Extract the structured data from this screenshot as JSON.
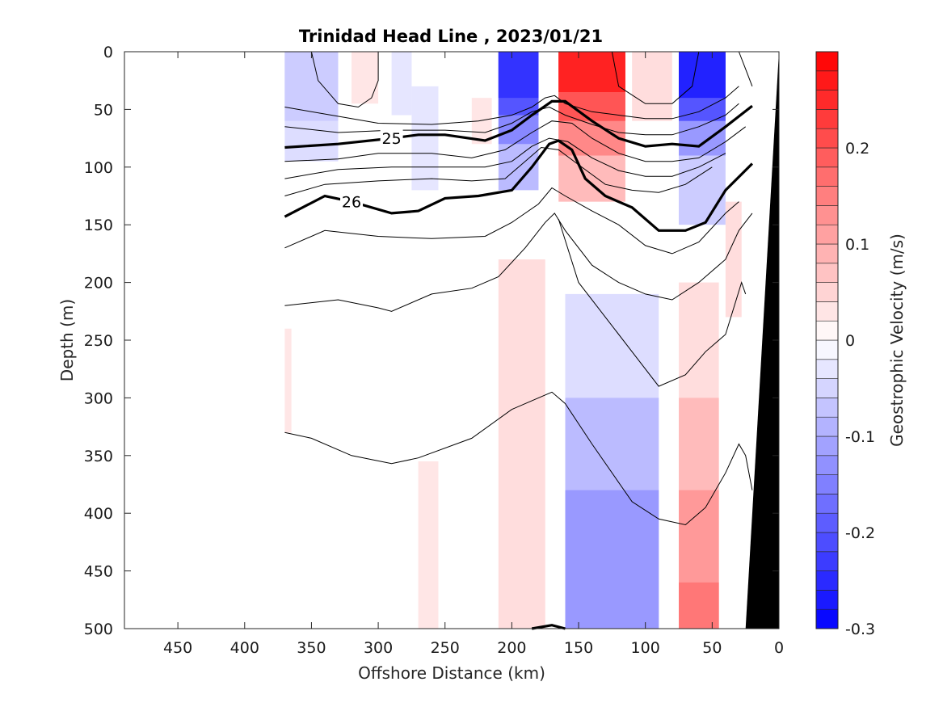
{
  "chart_data": {
    "type": "heatmap",
    "title": "Trinidad Head Line , 2023/01/21",
    "xlabel": "Offshore Distance (km)",
    "ylabel": "Depth (m)",
    "xlim": [
      490,
      0
    ],
    "ylim": [
      500,
      0
    ],
    "x_ticks": [
      "450",
      "400",
      "350",
      "300",
      "250",
      "200",
      "150",
      "100",
      "50",
      "0"
    ],
    "y_ticks": [
      "0",
      "50",
      "100",
      "150",
      "200",
      "250",
      "300",
      "350",
      "400",
      "450",
      "500"
    ],
    "colorbar": {
      "label": "Geostrophic Velocity (m/s)",
      "range": [
        -0.3,
        0.3
      ],
      "step": 0.02,
      "tick_labels": [
        "0.2",
        "0.1",
        "0",
        "-0.1",
        "-0.2",
        "-0.3"
      ],
      "tick_values": [
        0.2,
        0.1,
        0,
        -0.1,
        -0.2,
        -0.3
      ],
      "colormap": "blue-white-red"
    },
    "velocity_columns": [
      {
        "x_range": [
          370,
          330
        ],
        "layers": [
          {
            "depth": [
              0,
              95
            ],
            "value": -0.04
          },
          {
            "depth": [
              0,
              60
            ],
            "value": -0.06
          }
        ]
      },
      {
        "x_range": [
          320,
          300
        ],
        "layers": [
          {
            "depth": [
              0,
              45
            ],
            "value": 0.03
          }
        ]
      },
      {
        "x_range": [
          290,
          275
        ],
        "layers": [
          {
            "depth": [
              0,
              55
            ],
            "value": -0.03
          }
        ]
      },
      {
        "x_range": [
          275,
          255
        ],
        "layers": [
          {
            "depth": [
              30,
              120
            ],
            "value": -0.03
          }
        ]
      },
      {
        "x_range": [
          270,
          255
        ],
        "layers": [
          {
            "depth": [
              355,
              500
            ],
            "value": 0.03
          }
        ]
      },
      {
        "x_range": [
          230,
          215
        ],
        "layers": [
          {
            "depth": [
              40,
              80
            ],
            "value": 0.03
          }
        ]
      },
      {
        "x_range": [
          210,
          180
        ],
        "layers": [
          {
            "depth": [
              0,
              120
            ],
            "value": -0.08
          },
          {
            "depth": [
              0,
              80
            ],
            "value": -0.14
          },
          {
            "depth": [
              0,
              55
            ],
            "value": -0.2
          },
          {
            "depth": [
              0,
              40
            ],
            "value": -0.24
          }
        ]
      },
      {
        "x_range": [
          210,
          175
        ],
        "layers": [
          {
            "depth": [
              180,
              500
            ],
            "value": 0.04
          }
        ]
      },
      {
        "x_range": [
          165,
          115
        ],
        "layers": [
          {
            "depth": [
              0,
              130
            ],
            "value": 0.08
          },
          {
            "depth": [
              0,
              90
            ],
            "value": 0.14
          },
          {
            "depth": [
              0,
              60
            ],
            "value": 0.2
          },
          {
            "depth": [
              0,
              35
            ],
            "value": 0.26
          }
        ]
      },
      {
        "x_range": [
          160,
          90
        ],
        "layers": [
          {
            "depth": [
              210,
              500
            ],
            "value": -0.04
          },
          {
            "depth": [
              300,
              500
            ],
            "value": -0.08
          },
          {
            "depth": [
              380,
              500
            ],
            "value": -0.12
          }
        ]
      },
      {
        "x_range": [
          110,
          80
        ],
        "layers": [
          {
            "depth": [
              0,
              60
            ],
            "value": 0.04
          }
        ]
      },
      {
        "x_range": [
          75,
          40
        ],
        "layers": [
          {
            "depth": [
              0,
              150
            ],
            "value": -0.06
          },
          {
            "depth": [
              0,
              90
            ],
            "value": -0.12
          },
          {
            "depth": [
              0,
              60
            ],
            "value": -0.2
          },
          {
            "depth": [
              0,
              40
            ],
            "value": -0.26
          }
        ]
      },
      {
        "x_range": [
          75,
          45
        ],
        "layers": [
          {
            "depth": [
              200,
              500
            ],
            "value": 0.04
          },
          {
            "depth": [
              300,
              500
            ],
            "value": 0.08
          },
          {
            "depth": [
              380,
              500
            ],
            "value": 0.12
          },
          {
            "depth": [
              460,
              500
            ],
            "value": 0.16
          }
        ]
      },
      {
        "x_range": [
          40,
          28
        ],
        "layers": [
          {
            "depth": [
              130,
              230
            ],
            "value": 0.04
          }
        ]
      },
      {
        "x_range": [
          370,
          365
        ],
        "layers": [
          {
            "depth": [
              240,
              330
            ],
            "value": 0.03
          }
        ]
      }
    ],
    "density_contours": [
      {
        "label": "",
        "bold": false,
        "points": [
          [
            370,
            48
          ],
          [
            335,
            55
          ],
          [
            300,
            62
          ],
          [
            260,
            63
          ],
          [
            225,
            60
          ],
          [
            200,
            55
          ],
          [
            185,
            48
          ],
          [
            175,
            40
          ],
          [
            168,
            38
          ],
          [
            160,
            45
          ],
          [
            140,
            52
          ],
          [
            120,
            55
          ],
          [
            100,
            58
          ],
          [
            80,
            58
          ],
          [
            60,
            52
          ],
          [
            40,
            40
          ],
          [
            30,
            30
          ]
        ]
      },
      {
        "label": "",
        "bold": false,
        "points": [
          [
            370,
            65
          ],
          [
            330,
            70
          ],
          [
            290,
            68
          ],
          [
            250,
            68
          ],
          [
            220,
            70
          ],
          [
            200,
            62
          ],
          [
            185,
            52
          ],
          [
            172,
            48
          ],
          [
            160,
            55
          ],
          [
            140,
            63
          ],
          [
            120,
            70
          ],
          [
            100,
            72
          ],
          [
            80,
            72
          ],
          [
            60,
            65
          ],
          [
            40,
            55
          ],
          [
            30,
            45
          ]
        ]
      },
      {
        "label": "25",
        "bold": true,
        "points": [
          [
            370,
            83
          ],
          [
            330,
            80
          ],
          [
            290,
            75
          ],
          [
            270,
            72
          ],
          [
            250,
            72
          ],
          [
            220,
            77
          ],
          [
            200,
            68
          ],
          [
            185,
            55
          ],
          [
            170,
            43
          ],
          [
            160,
            43
          ],
          [
            140,
            60
          ],
          [
            120,
            75
          ],
          [
            100,
            82
          ],
          [
            80,
            80
          ],
          [
            60,
            82
          ],
          [
            40,
            65
          ],
          [
            20,
            47
          ]
        ]
      },
      {
        "label": "",
        "bold": false,
        "points": [
          [
            370,
            95
          ],
          [
            330,
            93
          ],
          [
            300,
            88
          ],
          [
            260,
            88
          ],
          [
            230,
            92
          ],
          [
            205,
            85
          ],
          [
            185,
            70
          ],
          [
            170,
            60
          ],
          [
            155,
            62
          ],
          [
            140,
            75
          ],
          [
            120,
            88
          ],
          [
            100,
            95
          ],
          [
            80,
            95
          ],
          [
            60,
            92
          ],
          [
            40,
            78
          ],
          [
            25,
            65
          ]
        ]
      },
      {
        "label": "",
        "bold": false,
        "points": [
          [
            370,
            110
          ],
          [
            330,
            102
          ],
          [
            290,
            100
          ],
          [
            250,
            100
          ],
          [
            220,
            100
          ],
          [
            200,
            95
          ],
          [
            185,
            82
          ],
          [
            172,
            75
          ],
          [
            158,
            78
          ],
          [
            140,
            92
          ],
          [
            120,
            103
          ],
          [
            100,
            108
          ],
          [
            80,
            108
          ],
          [
            60,
            100
          ],
          [
            40,
            88
          ]
        ]
      },
      {
        "label": "",
        "bold": false,
        "points": [
          [
            370,
            125
          ],
          [
            340,
            115
          ],
          [
            300,
            112
          ],
          [
            260,
            110
          ],
          [
            230,
            112
          ],
          [
            205,
            110
          ],
          [
            190,
            95
          ],
          [
            178,
            83
          ],
          [
            165,
            85
          ],
          [
            150,
            98
          ],
          [
            130,
            115
          ],
          [
            110,
            120
          ],
          [
            90,
            122
          ],
          [
            70,
            115
          ],
          [
            50,
            100
          ]
        ]
      },
      {
        "label": "26",
        "bold": true,
        "points": [
          [
            370,
            143
          ],
          [
            340,
            125
          ],
          [
            320,
            130
          ],
          [
            290,
            140
          ],
          [
            270,
            138
          ],
          [
            250,
            127
          ],
          [
            225,
            125
          ],
          [
            200,
            120
          ],
          [
            185,
            100
          ],
          [
            172,
            80
          ],
          [
            165,
            77
          ],
          [
            155,
            85
          ],
          [
            145,
            110
          ],
          [
            130,
            125
          ],
          [
            110,
            135
          ],
          [
            90,
            155
          ],
          [
            70,
            155
          ],
          [
            55,
            148
          ],
          [
            40,
            120
          ],
          [
            20,
            97
          ]
        ]
      },
      {
        "label": "",
        "bold": false,
        "points": [
          [
            370,
            170
          ],
          [
            340,
            155
          ],
          [
            300,
            160
          ],
          [
            260,
            162
          ],
          [
            220,
            160
          ],
          [
            200,
            148
          ],
          [
            180,
            132
          ],
          [
            170,
            118
          ],
          [
            160,
            125
          ],
          [
            140,
            138
          ],
          [
            120,
            150
          ],
          [
            100,
            168
          ],
          [
            80,
            175
          ],
          [
            60,
            165
          ],
          [
            40,
            140
          ],
          [
            30,
            130
          ]
        ]
      },
      {
        "label": "",
        "bold": false,
        "points": [
          [
            370,
            220
          ],
          [
            330,
            215
          ],
          [
            300,
            222
          ],
          [
            290,
            225
          ],
          [
            260,
            210
          ],
          [
            230,
            205
          ],
          [
            210,
            195
          ],
          [
            190,
            170
          ],
          [
            175,
            148
          ],
          [
            168,
            140
          ],
          [
            160,
            155
          ],
          [
            140,
            185
          ],
          [
            120,
            200
          ],
          [
            100,
            210
          ],
          [
            80,
            215
          ],
          [
            60,
            200
          ],
          [
            40,
            180
          ],
          [
            30,
            155
          ],
          [
            20,
            140
          ]
        ]
      },
      {
        "label": "",
        "bold": false,
        "points": [
          [
            370,
            330
          ],
          [
            350,
            335
          ],
          [
            320,
            350
          ],
          [
            290,
            357
          ],
          [
            270,
            352
          ],
          [
            230,
            335
          ],
          [
            200,
            310
          ],
          [
            180,
            300
          ],
          [
            170,
            295
          ],
          [
            160,
            305
          ],
          [
            140,
            340
          ],
          [
            110,
            390
          ],
          [
            90,
            405
          ],
          [
            70,
            410
          ],
          [
            55,
            395
          ],
          [
            40,
            365
          ],
          [
            30,
            340
          ],
          [
            25,
            350
          ],
          [
            20,
            380
          ]
        ]
      },
      {
        "label": "",
        "bold": false,
        "points": [
          [
            165,
            145
          ],
          [
            150,
            200
          ],
          [
            130,
            230
          ],
          [
            110,
            260
          ],
          [
            90,
            290
          ],
          [
            70,
            280
          ],
          [
            55,
            260
          ],
          [
            40,
            245
          ],
          [
            28,
            200
          ],
          [
            25,
            210
          ]
        ]
      },
      {
        "label": "",
        "bold": false,
        "points": [
          [
            350,
            0
          ],
          [
            345,
            25
          ],
          [
            330,
            45
          ],
          [
            315,
            48
          ],
          [
            305,
            40
          ],
          [
            300,
            25
          ],
          [
            300,
            0
          ]
        ]
      },
      {
        "label": "",
        "bold": false,
        "points": [
          [
            125,
            0
          ],
          [
            120,
            30
          ],
          [
            100,
            45
          ],
          [
            80,
            45
          ],
          [
            65,
            30
          ],
          [
            60,
            0
          ]
        ]
      },
      {
        "label": "",
        "bold": false,
        "points": [
          [
            30,
            0
          ],
          [
            25,
            15
          ],
          [
            20,
            30
          ]
        ]
      },
      {
        "label": "",
        "bold": true,
        "points": [
          [
            185,
            500
          ],
          [
            170,
            497
          ],
          [
            160,
            500
          ]
        ]
      }
    ],
    "bathymetry_shelf": [
      [
        0,
        0
      ],
      [
        25,
        500
      ],
      [
        0,
        500
      ]
    ]
  }
}
